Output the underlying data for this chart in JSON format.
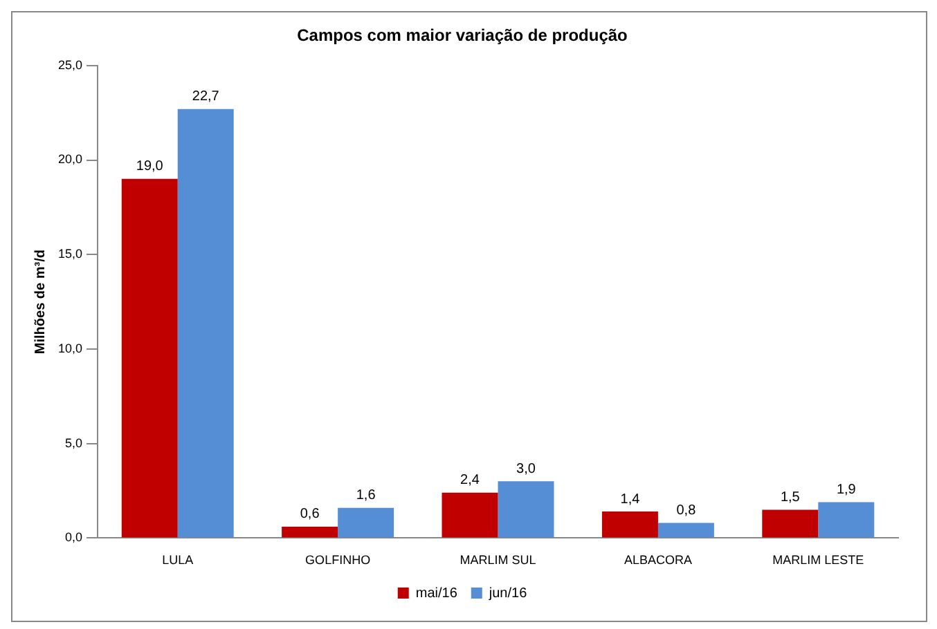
{
  "chart_data": {
    "type": "bar",
    "title": "Campos com maior variação de produção",
    "ylabel": "Milhões de m³/d",
    "categories": [
      "LULA",
      "GOLFINHO",
      "MARLIM SUL",
      "ALBACORA",
      "MARLIM LESTE"
    ],
    "series": [
      {
        "name": "mai/16",
        "color": "#c00000",
        "values": [
          19.0,
          0.6,
          2.4,
          1.4,
          1.5
        ],
        "value_labels": [
          "19,0",
          "0,6",
          "2,4",
          "1,4",
          "1,5"
        ]
      },
      {
        "name": "jun/16",
        "color": "#558ed5",
        "values": [
          22.7,
          1.6,
          3.0,
          0.8,
          1.9
        ],
        "value_labels": [
          "22,7",
          "1,6",
          "3,0",
          "0,8",
          "1,9"
        ]
      }
    ],
    "ylim": [
      0,
      25
    ],
    "yticks": [
      {
        "value": 0,
        "label": "0,0"
      },
      {
        "value": 5,
        "label": "5,0"
      },
      {
        "value": 10,
        "label": "10,0"
      },
      {
        "value": 15,
        "label": "15,0"
      },
      {
        "value": 20,
        "label": "20,0"
      },
      {
        "value": 25,
        "label": "25,0"
      }
    ],
    "grid": false,
    "legend": "bottom"
  }
}
